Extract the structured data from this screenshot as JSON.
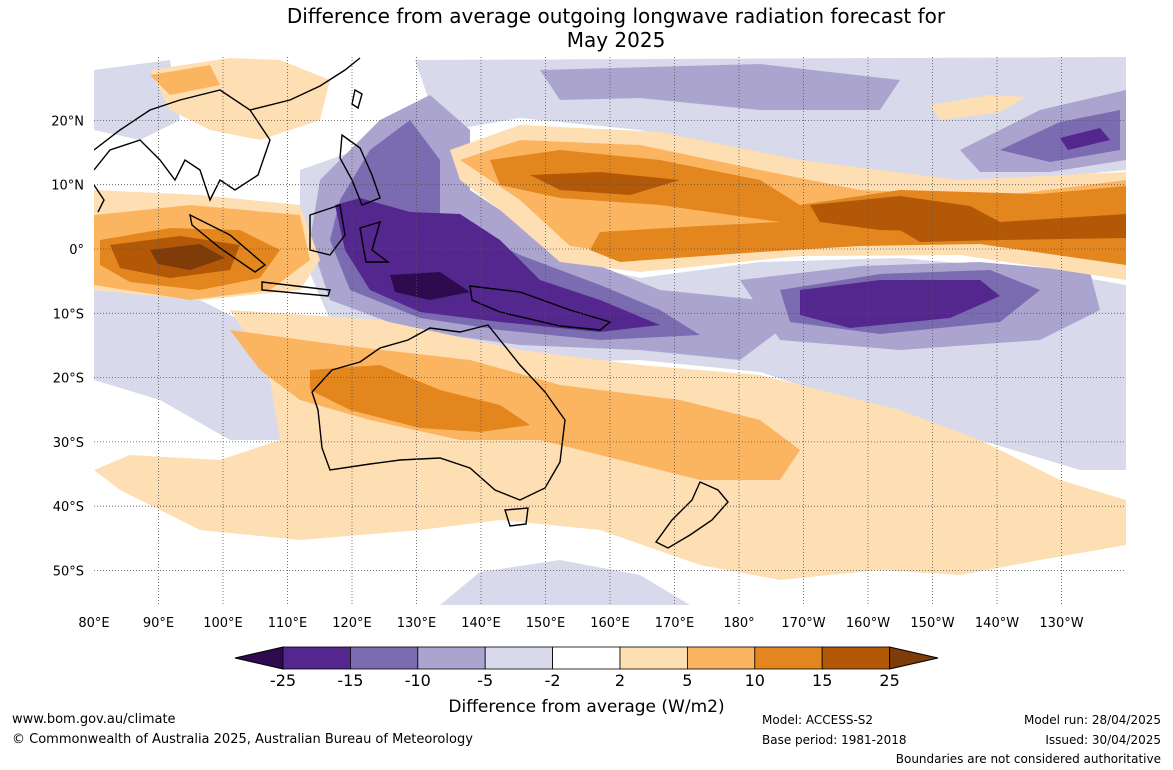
{
  "title_line1": "Difference from average outgoing longwave radiation forecast for",
  "title_line2": "May 2025",
  "lat_labels": [
    "20°N",
    "10°N",
    "0°",
    "10°S",
    "20°S",
    "30°S",
    "40°S",
    "50°S"
  ],
  "lat_values": [
    20,
    10,
    0,
    -10,
    -20,
    -30,
    -40,
    -50
  ],
  "lon_labels": [
    "80°E",
    "90°E",
    "100°E",
    "110°E",
    "120°E",
    "130°E",
    "140°E",
    "150°E",
    "160°E",
    "170°E",
    "180°",
    "170°W",
    "160°W",
    "150°W",
    "140°W",
    "130°W"
  ],
  "lon_values": [
    80,
    90,
    100,
    110,
    120,
    130,
    140,
    150,
    160,
    170,
    180,
    190,
    200,
    210,
    220,
    230
  ],
  "colorbar": {
    "ticks": [
      "-25",
      "-15",
      "-10",
      "-5",
      "-2",
      "2",
      "5",
      "10",
      "15",
      "25"
    ],
    "colors": [
      "#2d0b4e",
      "#54278f",
      "#7b6bb0",
      "#aaa4cf",
      "#d8d9ea",
      "#ffffff",
      "#fedeb3",
      "#fbb561",
      "#e3861e",
      "#b35806",
      "#7f3b08"
    ],
    "label": "Difference from average (W/m2)"
  },
  "footer": {
    "website": "www.bom.gov.au/climate",
    "copyright": "© Commonwealth of Australia 2025, Australian Bureau of Meteorology",
    "model": "Model: ACCESS-S2",
    "base_period": "Base period: 1981-2018",
    "model_run": "Model run: 28/04/2025",
    "issued": "Issued: 30/04/2025",
    "disclaimer": "Boundaries are not considered authoritative"
  }
}
